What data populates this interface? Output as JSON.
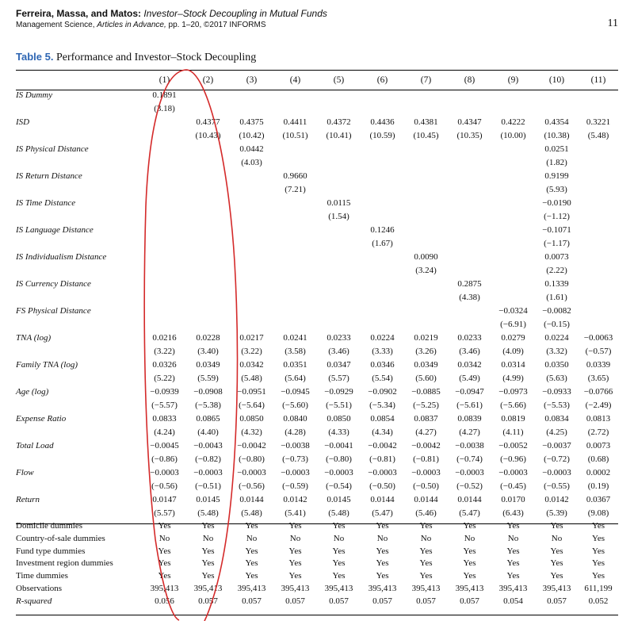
{
  "header": {
    "authors": "Ferreira, Massa, and Matos:",
    "title": "Investor–Stock Decoupling in Mutual Funds",
    "journal_name": "Management Science,",
    "journal_aia": "Articles in Advance,",
    "journal_rest": "pp. 1–20, ©2017 INFORMS",
    "page_number": "11"
  },
  "table": {
    "label": "Table 5.",
    "caption": "Performance and Investor–Stock Decoupling",
    "columns": [
      "(1)",
      "(2)",
      "(3)",
      "(4)",
      "(5)",
      "(6)",
      "(7)",
      "(8)",
      "(9)",
      "(10)",
      "(11)"
    ],
    "coef_rows": [
      {
        "label": "IS Dummy",
        "coef": [
          "0.1891",
          "",
          "",
          "",
          "",
          "",
          "",
          "",
          "",
          "",
          ""
        ],
        "tstat": [
          "(3.18)",
          "",
          "",
          "",
          "",
          "",
          "",
          "",
          "",
          "",
          ""
        ]
      },
      {
        "label": "ISD",
        "coef": [
          "",
          "0.4377",
          "0.4375",
          "0.4411",
          "0.4372",
          "0.4436",
          "0.4381",
          "0.4347",
          "0.4222",
          "0.4354",
          "0.3221"
        ],
        "tstat": [
          "",
          "(10.43)",
          "(10.42)",
          "(10.51)",
          "(10.41)",
          "(10.59)",
          "(10.45)",
          "(10.35)",
          "(10.00)",
          "(10.38)",
          "(5.48)"
        ]
      },
      {
        "label": "IS Physical Distance",
        "coef": [
          "",
          "",
          "0.0442",
          "",
          "",
          "",
          "",
          "",
          "",
          "0.0251",
          ""
        ],
        "tstat": [
          "",
          "",
          "(4.03)",
          "",
          "",
          "",
          "",
          "",
          "",
          "(1.82)",
          ""
        ]
      },
      {
        "label": "IS Return Distance",
        "coef": [
          "",
          "",
          "",
          "0.9660",
          "",
          "",
          "",
          "",
          "",
          "0.9199",
          ""
        ],
        "tstat": [
          "",
          "",
          "",
          "(7.21)",
          "",
          "",
          "",
          "",
          "",
          "(5.93)",
          ""
        ]
      },
      {
        "label": "IS Time Distance",
        "coef": [
          "",
          "",
          "",
          "",
          "0.0115",
          "",
          "",
          "",
          "",
          "−0.0190",
          ""
        ],
        "tstat": [
          "",
          "",
          "",
          "",
          "(1.54)",
          "",
          "",
          "",
          "",
          "(−1.12)",
          ""
        ]
      },
      {
        "label": "IS Language Distance",
        "coef": [
          "",
          "",
          "",
          "",
          "",
          "0.1246",
          "",
          "",
          "",
          "−0.1071",
          ""
        ],
        "tstat": [
          "",
          "",
          "",
          "",
          "",
          "(1.67)",
          "",
          "",
          "",
          "(−1.17)",
          ""
        ]
      },
      {
        "label": "IS Individualism Distance",
        "coef": [
          "",
          "",
          "",
          "",
          "",
          "",
          "0.0090",
          "",
          "",
          "0.0073",
          ""
        ],
        "tstat": [
          "",
          "",
          "",
          "",
          "",
          "",
          "(3.24)",
          "",
          "",
          "(2.22)",
          ""
        ]
      },
      {
        "label": "IS Currency Distance",
        "coef": [
          "",
          "",
          "",
          "",
          "",
          "",
          "",
          "0.2875",
          "",
          "0.1339",
          ""
        ],
        "tstat": [
          "",
          "",
          "",
          "",
          "",
          "",
          "",
          "(4.38)",
          "",
          "(1.61)",
          ""
        ]
      },
      {
        "label": "FS Physical Distance",
        "coef": [
          "",
          "",
          "",
          "",
          "",
          "",
          "",
          "",
          "−0.0324",
          "−0.0082",
          ""
        ],
        "tstat": [
          "",
          "",
          "",
          "",
          "",
          "",
          "",
          "",
          "(−6.91)",
          "(−0.15)",
          ""
        ]
      },
      {
        "label": "TNA (log)",
        "coef": [
          "0.0216",
          "0.0228",
          "0.0217",
          "0.0241",
          "0.0233",
          "0.0224",
          "0.0219",
          "0.0233",
          "0.0279",
          "0.0224",
          "−0.0063"
        ],
        "tstat": [
          "(3.22)",
          "(3.40)",
          "(3.22)",
          "(3.58)",
          "(3.46)",
          "(3.33)",
          "(3.26)",
          "(3.46)",
          "(4.09)",
          "(3.32)",
          "(−0.57)"
        ]
      },
      {
        "label": "Family TNA (log)",
        "coef": [
          "0.0326",
          "0.0349",
          "0.0342",
          "0.0351",
          "0.0347",
          "0.0346",
          "0.0349",
          "0.0342",
          "0.0314",
          "0.0350",
          "0.0339"
        ],
        "tstat": [
          "(5.22)",
          "(5.59)",
          "(5.48)",
          "(5.64)",
          "(5.57)",
          "(5.54)",
          "(5.60)",
          "(5.49)",
          "(4.99)",
          "(5.63)",
          "(3.65)"
        ]
      },
      {
        "label": "Age (log)",
        "coef": [
          "−0.0939",
          "−0.0908",
          "−0.0951",
          "−0.0945",
          "−0.0929",
          "−0.0902",
          "−0.0885",
          "−0.0947",
          "−0.0973",
          "−0.0933",
          "−0.0766"
        ],
        "tstat": [
          "(−5.57)",
          "(−5.38)",
          "(−5.64)",
          "(−5.60)",
          "(−5.51)",
          "(−5.34)",
          "(−5.25)",
          "(−5.61)",
          "(−5.66)",
          "(−5.53)",
          "(−2.49)"
        ]
      },
      {
        "label": "Expense Ratio",
        "coef": [
          "0.0833",
          "0.0865",
          "0.0850",
          "0.0840",
          "0.0850",
          "0.0854",
          "0.0837",
          "0.0839",
          "0.0819",
          "0.0834",
          "0.0813"
        ],
        "tstat": [
          "(4.24)",
          "(4.40)",
          "(4.32)",
          "(4.28)",
          "(4.33)",
          "(4.34)",
          "(4.27)",
          "(4.27)",
          "(4.11)",
          "(4.25)",
          "(2.72)"
        ]
      },
      {
        "label": "Total Load",
        "coef": [
          "−0.0045",
          "−0.0043",
          "−0.0042",
          "−0.0038",
          "−0.0041",
          "−0.0042",
          "−0.0042",
          "−0.0038",
          "−0.0052",
          "−0.0037",
          "0.0073"
        ],
        "tstat": [
          "(−0.86)",
          "(−0.82)",
          "(−0.80)",
          "(−0.73)",
          "(−0.80)",
          "(−0.81)",
          "(−0.81)",
          "(−0.74)",
          "(−0.96)",
          "(−0.72)",
          "(0.68)"
        ]
      },
      {
        "label": "Flow",
        "coef": [
          "−0.0003",
          "−0.0003",
          "−0.0003",
          "−0.0003",
          "−0.0003",
          "−0.0003",
          "−0.0003",
          "−0.0003",
          "−0.0003",
          "−0.0003",
          "0.0002"
        ],
        "tstat": [
          "(−0.56)",
          "(−0.51)",
          "(−0.56)",
          "(−0.59)",
          "(−0.54)",
          "(−0.50)",
          "(−0.50)",
          "(−0.52)",
          "(−0.45)",
          "(−0.55)",
          "(0.19)"
        ]
      },
      {
        "label": "Return",
        "coef": [
          "0.0147",
          "0.0145",
          "0.0144",
          "0.0142",
          "0.0145",
          "0.0144",
          "0.0144",
          "0.0144",
          "0.0170",
          "0.0142",
          "0.0367"
        ],
        "tstat": [
          "(5.57)",
          "(5.48)",
          "(5.48)",
          "(5.41)",
          "(5.48)",
          "(5.47)",
          "(5.46)",
          "(5.47)",
          "(6.43)",
          "(5.39)",
          "(9.08)"
        ]
      }
    ],
    "flag_rows": [
      {
        "label": "Domicile dummies",
        "values": [
          "Yes",
          "Yes",
          "Yes",
          "Yes",
          "Yes",
          "Yes",
          "Yes",
          "Yes",
          "Yes",
          "Yes",
          "Yes"
        ]
      },
      {
        "label": "Country-of-sale dummies",
        "values": [
          "No",
          "No",
          "No",
          "No",
          "No",
          "No",
          "No",
          "No",
          "No",
          "No",
          "Yes"
        ]
      },
      {
        "label": "Fund type dummies",
        "values": [
          "Yes",
          "Yes",
          "Yes",
          "Yes",
          "Yes",
          "Yes",
          "Yes",
          "Yes",
          "Yes",
          "Yes",
          "Yes"
        ]
      },
      {
        "label": "Investment region dummies",
        "values": [
          "Yes",
          "Yes",
          "Yes",
          "Yes",
          "Yes",
          "Yes",
          "Yes",
          "Yes",
          "Yes",
          "Yes",
          "Yes"
        ]
      },
      {
        "label": "Time dummies",
        "values": [
          "Yes",
          "Yes",
          "Yes",
          "Yes",
          "Yes",
          "Yes",
          "Yes",
          "Yes",
          "Yes",
          "Yes",
          "Yes"
        ]
      },
      {
        "label": "Observations",
        "values": [
          "395,413",
          "395,413",
          "395,413",
          "395,413",
          "395,413",
          "395,413",
          "395,413",
          "395,413",
          "395,413",
          "395,413",
          "611,199"
        ]
      },
      {
        "label": "R-squared",
        "values": [
          "0.056",
          "0.057",
          "0.057",
          "0.057",
          "0.057",
          "0.057",
          "0.057",
          "0.057",
          "0.054",
          "0.057",
          "0.052"
        ]
      }
    ]
  },
  "annotation": {
    "color": "#d42a2a"
  }
}
